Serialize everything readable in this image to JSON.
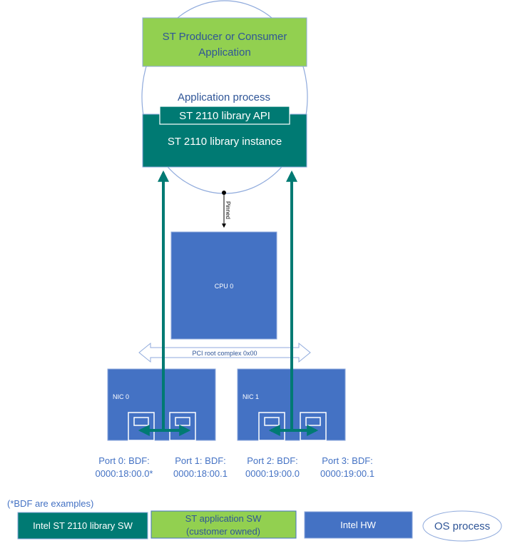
{
  "app_box": {
    "line1": "ST Producer or Consumer",
    "line2": "Application"
  },
  "process_label": "Application process",
  "api_box": "ST 2110 library API",
  "instance_box": "ST 2110 library instance",
  "pinned_label": "Pinned",
  "cpu_label": "CPU 0",
  "pci_label": "PCI root complex 0x00",
  "nics": [
    {
      "label": "NIC 0"
    },
    {
      "label": "NIC 1"
    }
  ],
  "ports": [
    {
      "line1": "Port 0: BDF:",
      "line2": "0000:18:00.0*"
    },
    {
      "line1": "Port 1: BDF:",
      "line2": "0000:18:00.1"
    },
    {
      "line1": "Port 2: BDF:",
      "line2": "0000:19:00.0"
    },
    {
      "line1": "Port 3: BDF:",
      "line2": "0000:19:00.1"
    }
  ],
  "legend": {
    "note": "(*BDF are examples)",
    "intel_sw": "Intel ST 2110 library SW",
    "app_sw_line1": "ST application SW",
    "app_sw_line2": "(customer owned)",
    "intel_hw": "Intel HW",
    "os_process": "OS process"
  },
  "colors": {
    "teal": "#007a73",
    "green": "#92d050",
    "blue": "#4472c4",
    "text_blue": "#2f5597",
    "outline": "#8faadc"
  }
}
